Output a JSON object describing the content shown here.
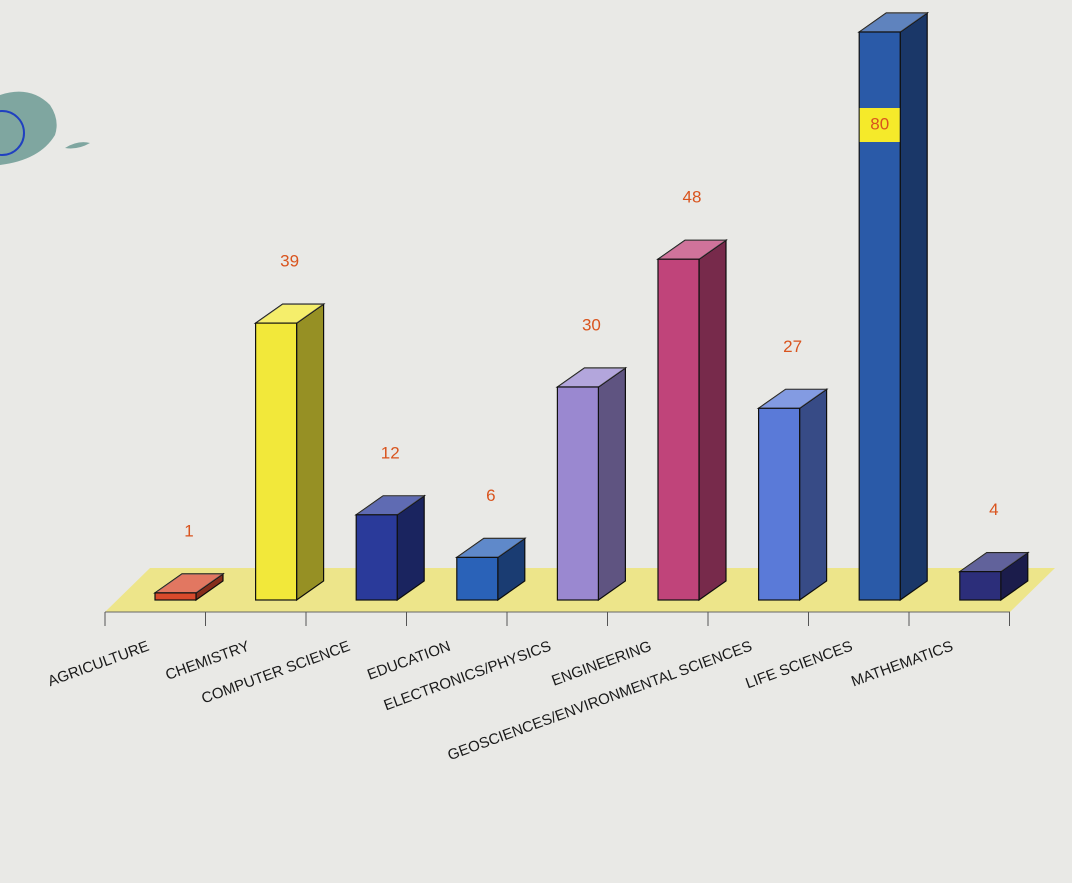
{
  "chart_data": {
    "type": "bar3d",
    "categories": [
      "AGRICULTURE",
      "CHEMISTRY",
      "COMPUTER SCIENCE",
      "EDUCATION",
      "ELECTRONICS/PHYSICS",
      "ENGINEERING",
      "GEOSCIENCES/ENVIRONMENTAL SCIENCES",
      "LIFE SCIENCES",
      "MATHEMATICS"
    ],
    "values": [
      1,
      39,
      12,
      6,
      30,
      48,
      27,
      80,
      4
    ],
    "colors": [
      "#d84a2c",
      "#f2e83a",
      "#2a3a9a",
      "#2a62b8",
      "#9a88d0",
      "#c0447a",
      "#5a7ad8",
      "#2a5aa8",
      "#2c2e7a"
    ],
    "label_color": "#d9541e"
  }
}
